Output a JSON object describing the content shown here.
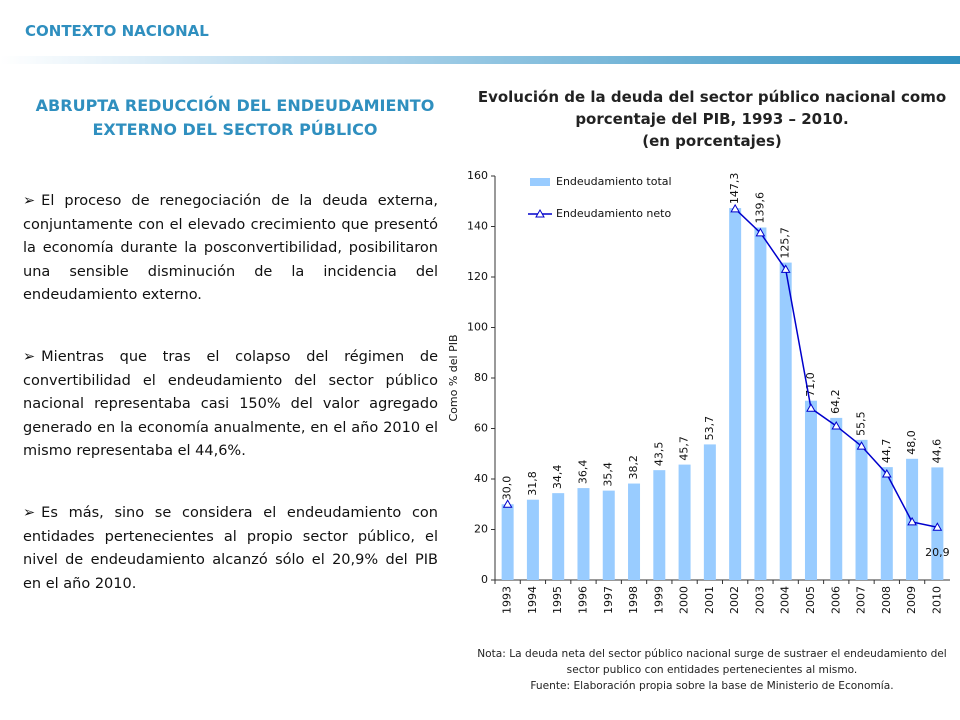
{
  "header": {
    "title": "CONTEXTO NACIONAL"
  },
  "left": {
    "heading": "ABRUPTA REDUCCIÓN DEL ENDEUDAMIENTO EXTERNO DEL SECTOR PÚBLICO",
    "bullets": [
      "El proceso de renegociación de la deuda externa, conjuntamente con el elevado crecimiento que presentó la economía durante la posconvertibilidad, posibilitaron una sensible disminución de la incidencia del endeudamiento externo.",
      "Mientras que tras el colapso del régimen de convertibilidad el endeudamiento del sector público nacional representaba casi 150% del valor agregado generado en la economía anualmente, en el año 2010 el mismo representaba el 44,6%.",
      "Es más, sino se considera el endeudamiento con entidades pertenecientes al propio sector público, el nivel de endeudamiento alcanzó sólo el 20,9% del PIB en el año 2010."
    ]
  },
  "chart_data": {
    "type": "bar_line",
    "title": "Evolución de la deuda del sector público nacional como porcentaje del PIB, 1993 – 2010.",
    "subtitle": "(en porcentajes)",
    "y_label": "Como % del PIB",
    "categories": [
      "1993",
      "1994",
      "1995",
      "1996",
      "1997",
      "1998",
      "1999",
      "2000",
      "2001",
      "2002",
      "2003",
      "2004",
      "2005",
      "2006",
      "2007",
      "2008",
      "2009",
      "2010"
    ],
    "series": [
      {
        "name": "Endeudamiento total",
        "color": "#99ccff",
        "kind": "bar",
        "values": [
          30.0,
          31.8,
          34.4,
          36.4,
          35.4,
          38.2,
          43.5,
          45.7,
          53.7,
          147.3,
          139.6,
          125.7,
          71.0,
          64.2,
          55.5,
          44.7,
          48.0,
          44.6
        ],
        "value_labels": [
          "30,0",
          "31,8",
          "34,4",
          "36,4",
          "35,4",
          "38,2",
          "43,5",
          "45,7",
          "53,7",
          "147,3",
          "139,6",
          "125,7",
          "71,0",
          "64,2",
          "55,5",
          "44,7",
          "48,0",
          "44,6"
        ]
      },
      {
        "name": "Endeudamiento neto",
        "color": "#0000cc",
        "kind": "line",
        "values": [
          30,
          null,
          null,
          null,
          null,
          null,
          null,
          null,
          null,
          147,
          137.5,
          123,
          68,
          61,
          53,
          42,
          23,
          20.9
        ],
        "value_labels": [
          null,
          null,
          null,
          null,
          null,
          null,
          null,
          null,
          null,
          null,
          null,
          null,
          null,
          null,
          null,
          null,
          null,
          "20,9"
        ]
      }
    ],
    "ylim": [
      0,
      160
    ],
    "yticks": [
      0,
      20,
      40,
      60,
      80,
      100,
      120,
      140,
      160
    ],
    "notes": [
      "Nota: La deuda neta del sector público nacional surge de sustraer el endeudamiento del sector publico con entidades pertenecientes al mismo.",
      "Fuente: Elaboración propia sobre la base de Ministerio de Economía."
    ]
  }
}
